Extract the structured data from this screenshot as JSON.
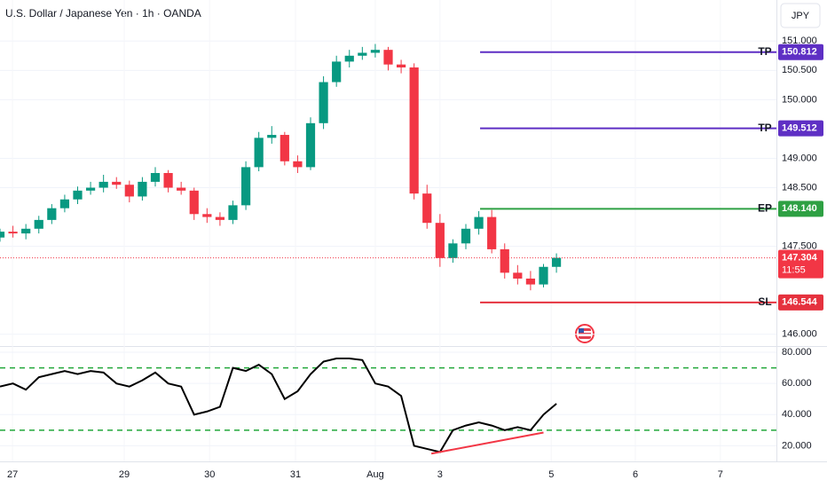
{
  "chart_data": [
    {
      "type": "candlestick",
      "title": "U.S. Dollar / Japanese Yen · 1h · OANDA",
      "currency": "JPY",
      "up_color": "#089981",
      "down_color": "#f23645",
      "x": [
        0,
        3,
        6,
        9,
        12,
        15,
        18,
        21,
        24,
        27,
        30,
        33,
        36,
        39,
        42,
        45,
        48,
        51,
        54,
        57,
        60,
        63,
        66,
        69,
        72,
        75,
        78,
        81,
        84,
        87,
        90,
        93,
        96,
        99,
        102,
        105,
        108,
        111,
        114,
        117,
        120,
        123,
        126,
        129
      ],
      "open": [
        147.65,
        147.75,
        147.72,
        147.8,
        147.95,
        148.15,
        148.3,
        148.45,
        148.5,
        148.6,
        148.55,
        148.35,
        148.6,
        148.75,
        148.5,
        148.45,
        148.05,
        148.0,
        147.95,
        148.2,
        148.85,
        149.35,
        149.4,
        148.95,
        148.85,
        149.6,
        150.3,
        150.65,
        150.75,
        150.8,
        150.85,
        150.6,
        150.55,
        148.4,
        147.9,
        147.3,
        147.55,
        147.8,
        148.0,
        147.45,
        147.05,
        146.95,
        146.85,
        147.15
      ],
      "high": [
        147.8,
        147.85,
        147.88,
        148.02,
        148.22,
        148.38,
        148.52,
        148.6,
        148.72,
        148.68,
        148.62,
        148.68,
        148.85,
        148.8,
        148.6,
        148.5,
        148.15,
        148.08,
        148.28,
        148.95,
        149.45,
        149.55,
        149.45,
        149.05,
        149.7,
        150.4,
        150.75,
        150.85,
        150.9,
        150.95,
        150.9,
        150.68,
        150.62,
        148.55,
        148.05,
        147.62,
        147.88,
        148.1,
        148.12,
        147.55,
        147.18,
        147.08,
        147.2,
        147.38
      ],
      "low": [
        147.58,
        147.65,
        147.62,
        147.72,
        147.88,
        148.08,
        148.22,
        148.38,
        148.42,
        148.48,
        148.25,
        148.28,
        148.52,
        148.42,
        148.38,
        147.95,
        147.9,
        147.85,
        147.88,
        148.12,
        148.78,
        149.25,
        148.88,
        148.75,
        148.8,
        149.5,
        150.22,
        150.55,
        150.68,
        150.72,
        150.5,
        150.45,
        148.3,
        147.8,
        147.15,
        147.22,
        147.45,
        147.7,
        147.38,
        146.95,
        146.85,
        146.75,
        146.8,
        147.05
      ],
      "close": [
        147.75,
        147.72,
        147.8,
        147.95,
        148.15,
        148.3,
        148.45,
        148.5,
        148.6,
        148.55,
        148.35,
        148.6,
        148.75,
        148.5,
        148.45,
        148.05,
        148.0,
        147.95,
        148.2,
        148.85,
        149.35,
        149.4,
        148.95,
        148.85,
        149.6,
        150.3,
        150.65,
        150.75,
        150.8,
        150.85,
        150.6,
        150.55,
        148.4,
        147.9,
        147.3,
        147.55,
        147.8,
        148.0,
        147.45,
        147.05,
        146.95,
        146.85,
        147.15,
        147.304
      ],
      "xlim": [
        0,
        180
      ],
      "xticks": [
        {
          "value": 2.9,
          "label": "27"
        },
        {
          "value": 28.8,
          "label": "29"
        },
        {
          "value": 48.6,
          "label": "30"
        },
        {
          "value": 68.5,
          "label": "31"
        },
        {
          "value": 87,
          "label": "Aug"
        },
        {
          "value": 102,
          "label": "3"
        },
        {
          "value": 127.8,
          "label": "5"
        },
        {
          "value": 147.3,
          "label": "6"
        },
        {
          "value": 167,
          "label": "7"
        }
      ],
      "ylim": [
        145.8,
        151.7
      ],
      "yticks": [
        {
          "value": 151,
          "label": "151.000"
        },
        {
          "value": 150.5,
          "label": "150.500"
        },
        {
          "value": 150,
          "label": "150.000"
        },
        {
          "value": 149,
          "label": "149.000"
        },
        {
          "value": 148.5,
          "label": "148.500"
        },
        {
          "value": 147.5,
          "label": "147.500"
        },
        {
          "value": 146,
          "label": "146.000"
        }
      ],
      "levels": [
        {
          "name": "TP",
          "value": 150.812,
          "label": "150.812",
          "color": "#5e2fc4"
        },
        {
          "name": "TP",
          "value": 149.512,
          "label": "149.512",
          "color": "#5e2fc4"
        },
        {
          "name": "EP",
          "value": 148.14,
          "label": "148.140",
          "color": "#2ea043"
        },
        {
          "name": "SL",
          "value": 146.544,
          "label": "146.544",
          "color": "#e5323e"
        }
      ],
      "levels_start_x": 111.3,
      "current_price": {
        "value": 147.304,
        "label": "147.304",
        "countdown": "11:55",
        "color": "#f23645"
      }
    },
    {
      "type": "line",
      "color": "#000000",
      "x": [
        0,
        3,
        6,
        9,
        12,
        15,
        18,
        21,
        24,
        27,
        30,
        33,
        36,
        39,
        42,
        45,
        48,
        51,
        54,
        57,
        60,
        63,
        66,
        69,
        72,
        75,
        78,
        81,
        84,
        87,
        90,
        93,
        96,
        99,
        102,
        105,
        108,
        111,
        114,
        117,
        120,
        123,
        126,
        129
      ],
      "values": [
        58,
        60,
        56,
        64,
        66,
        68,
        66,
        68,
        67,
        60,
        58,
        62,
        67,
        60,
        58,
        40,
        42,
        45,
        70,
        68,
        72,
        66,
        50,
        55,
        66,
        74,
        76,
        76,
        75,
        60,
        58,
        52,
        20,
        18,
        16,
        30,
        33,
        35,
        33,
        30,
        32,
        30,
        40,
        47
      ],
      "xlim": [
        0,
        180
      ],
      "ylim": [
        10,
        84
      ],
      "yticks": [
        {
          "value": 80,
          "label": "80.000"
        },
        {
          "value": 60,
          "label": "60.000"
        },
        {
          "value": 40,
          "label": "40.000"
        },
        {
          "value": 20,
          "label": "20.000"
        }
      ],
      "hlines": [
        {
          "value": 70,
          "color": "#22a83a"
        },
        {
          "value": 30,
          "color": "#22a83a"
        }
      ],
      "trendline": {
        "x": [
          100,
          126
        ],
        "values": [
          15,
          28.5
        ],
        "color": "#f23645"
      }
    }
  ]
}
